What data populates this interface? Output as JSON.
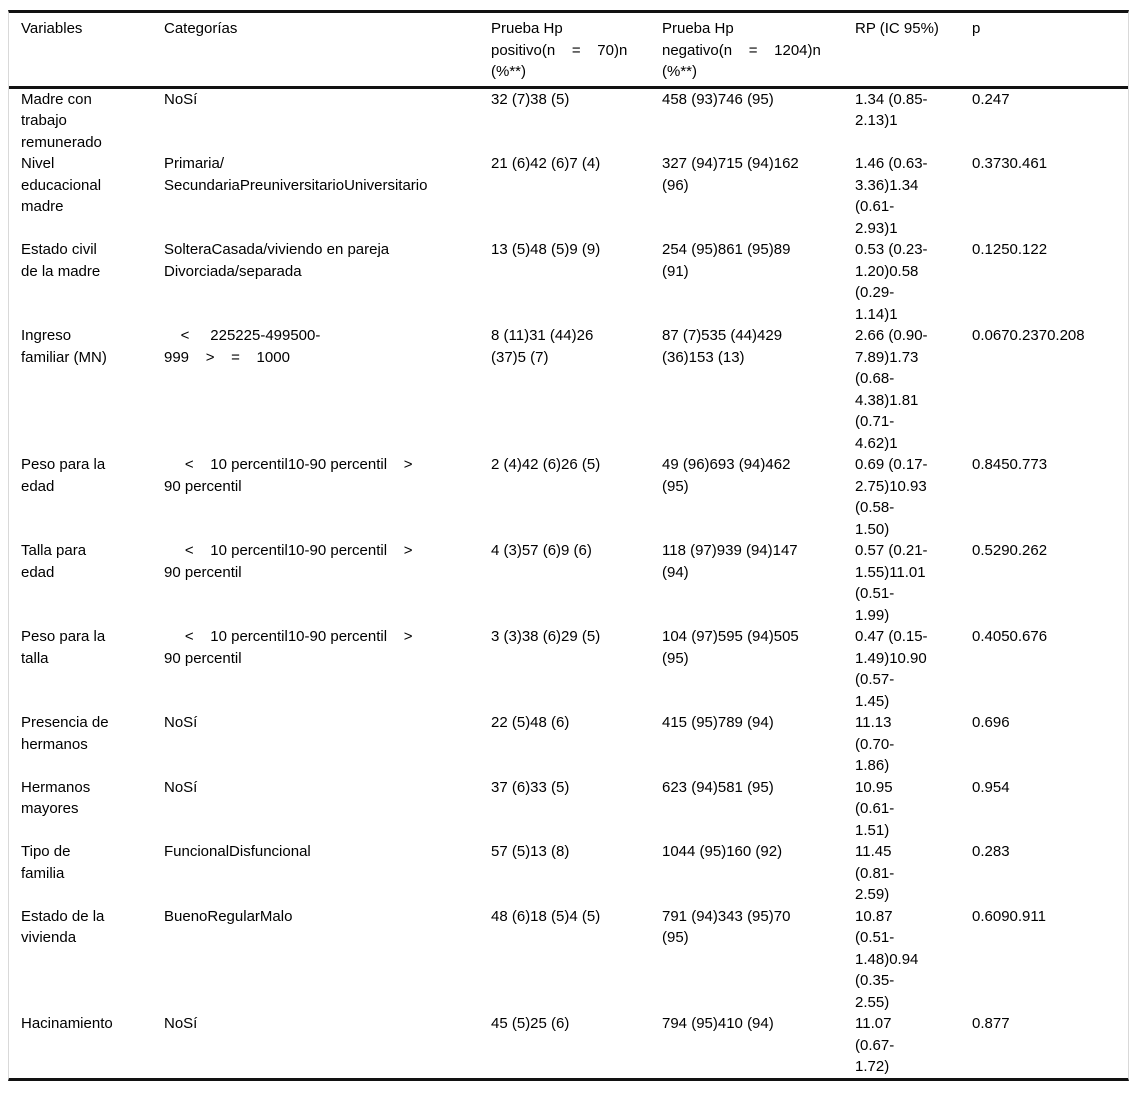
{
  "table": {
    "columns": [
      {
        "key": "variables",
        "label": "Variables"
      },
      {
        "key": "categorias",
        "label": "Categorías"
      },
      {
        "key": "hp_positivo",
        "label": "Prueba Hp\npositivo(n    =    70)n\n(%**)"
      },
      {
        "key": "hp_negativo",
        "label": "Prueba Hp\nnegativo(n    =    1204)n\n(%**)"
      },
      {
        "key": "rp",
        "label": "RP (IC 95%)"
      },
      {
        "key": "p",
        "label": "p"
      }
    ],
    "rows": [
      {
        "variables": "Madre con\ntrabajo\nremunerado",
        "categorias": "NoSí",
        "hp_positivo": "32 (7)38 (5)",
        "hp_negativo": "458 (93)746 (95)",
        "rp": "1.34 (0.85-\n2.13)1",
        "p": "0.247"
      },
      {
        "variables": "Nivel\neducacional\nmadre",
        "categorias": "Primaria/\nSecundariaPreuniversitarioUniversitario",
        "hp_positivo": "21 (6)42 (6)7 (4)",
        "hp_negativo": "327 (94)715 (94)162\n(96)",
        "rp": "1.46 (0.63-\n3.36)1.34\n(0.61-\n2.93)1",
        "p": "0.3730.461"
      },
      {
        "variables": "Estado civil\nde la madre",
        "categorias": "SolteraCasada/viviendo en pareja\nDivorciada/separada",
        "hp_positivo": "13 (5)48 (5)9 (9)",
        "hp_negativo": "254 (95)861 (95)89\n(91)",
        "rp": "0.53 (0.23-\n1.20)0.58\n(0.29-\n1.14)1",
        "p": "0.1250.122"
      },
      {
        "variables": "Ingreso\nfamiliar (MN)",
        "categorias": "    <     225225-499500-\n999    >    =    1000",
        "hp_positivo": "8 (11)31 (44)26\n(37)5 (7)",
        "hp_negativo": "87 (7)535 (44)429\n(36)153 (13)",
        "rp": "2.66 (0.90-\n7.89)1.73\n(0.68-\n4.38)1.81\n(0.71-\n4.62)1",
        "p": "0.0670.2370.208"
      },
      {
        "variables": "Peso para la\nedad",
        "categorias": "     <    10 percentil10-90 percentil    >\n90 percentil",
        "hp_positivo": "2 (4)42 (6)26 (5)",
        "hp_negativo": "49 (96)693 (94)462\n(95)",
        "rp": "0.69 (0.17-\n2.75)10.93\n(0.58-\n1.50)",
        "p": "0.8450.773"
      },
      {
        "variables": "Talla para\nedad",
        "categorias": "     <    10 percentil10-90 percentil    >\n90 percentil",
        "hp_positivo": "4 (3)57 (6)9 (6)",
        "hp_negativo": "118 (97)939 (94)147\n(94)",
        "rp": "0.57 (0.21-\n1.55)11.01\n(0.51-\n1.99)",
        "p": "0.5290.262"
      },
      {
        "variables": "Peso para la\ntalla",
        "categorias": "     <    10 percentil10-90 percentil    >\n90 percentil",
        "hp_positivo": "3 (3)38 (6)29 (5)",
        "hp_negativo": "104 (97)595 (94)505\n(95)",
        "rp": "0.47 (0.15-\n1.49)10.90\n(0.57-\n1.45)",
        "p": "0.4050.676"
      },
      {
        "variables": "Presencia de\nhermanos",
        "categorias": "NoSí",
        "hp_positivo": "22 (5)48 (6)",
        "hp_negativo": "415 (95)789 (94)",
        "rp": "11.13\n(0.70-\n1.86)",
        "p": "0.696"
      },
      {
        "variables": "Hermanos\nmayores",
        "categorias": "NoSí",
        "hp_positivo": "37 (6)33 (5)",
        "hp_negativo": "623 (94)581 (95)",
        "rp": "10.95\n(0.61-\n1.51)",
        "p": "0.954"
      },
      {
        "variables": "Tipo de\nfamilia",
        "categorias": "FuncionalDisfuncional",
        "hp_positivo": "57 (5)13 (8)",
        "hp_negativo": "1044 (95)160 (92)",
        "rp": "11.45\n(0.81-\n2.59)",
        "p": "0.283"
      },
      {
        "variables": "Estado de la\nvivienda",
        "categorias": "BuenoRegularMalo",
        "hp_positivo": "48 (6)18 (5)4 (5)",
        "hp_negativo": "791 (94)343 (95)70\n(95)",
        "rp": "10.87\n(0.51-\n1.48)0.94\n(0.35-\n2.55)",
        "p": "0.6090.911"
      },
      {
        "variables": "Hacinamiento",
        "categorias": "NoSí",
        "hp_positivo": "45 (5)25 (6)",
        "hp_negativo": "794 (95)410 (94)",
        "rp": "11.07\n(0.67-\n1.72)",
        "p": "0.877"
      }
    ]
  }
}
